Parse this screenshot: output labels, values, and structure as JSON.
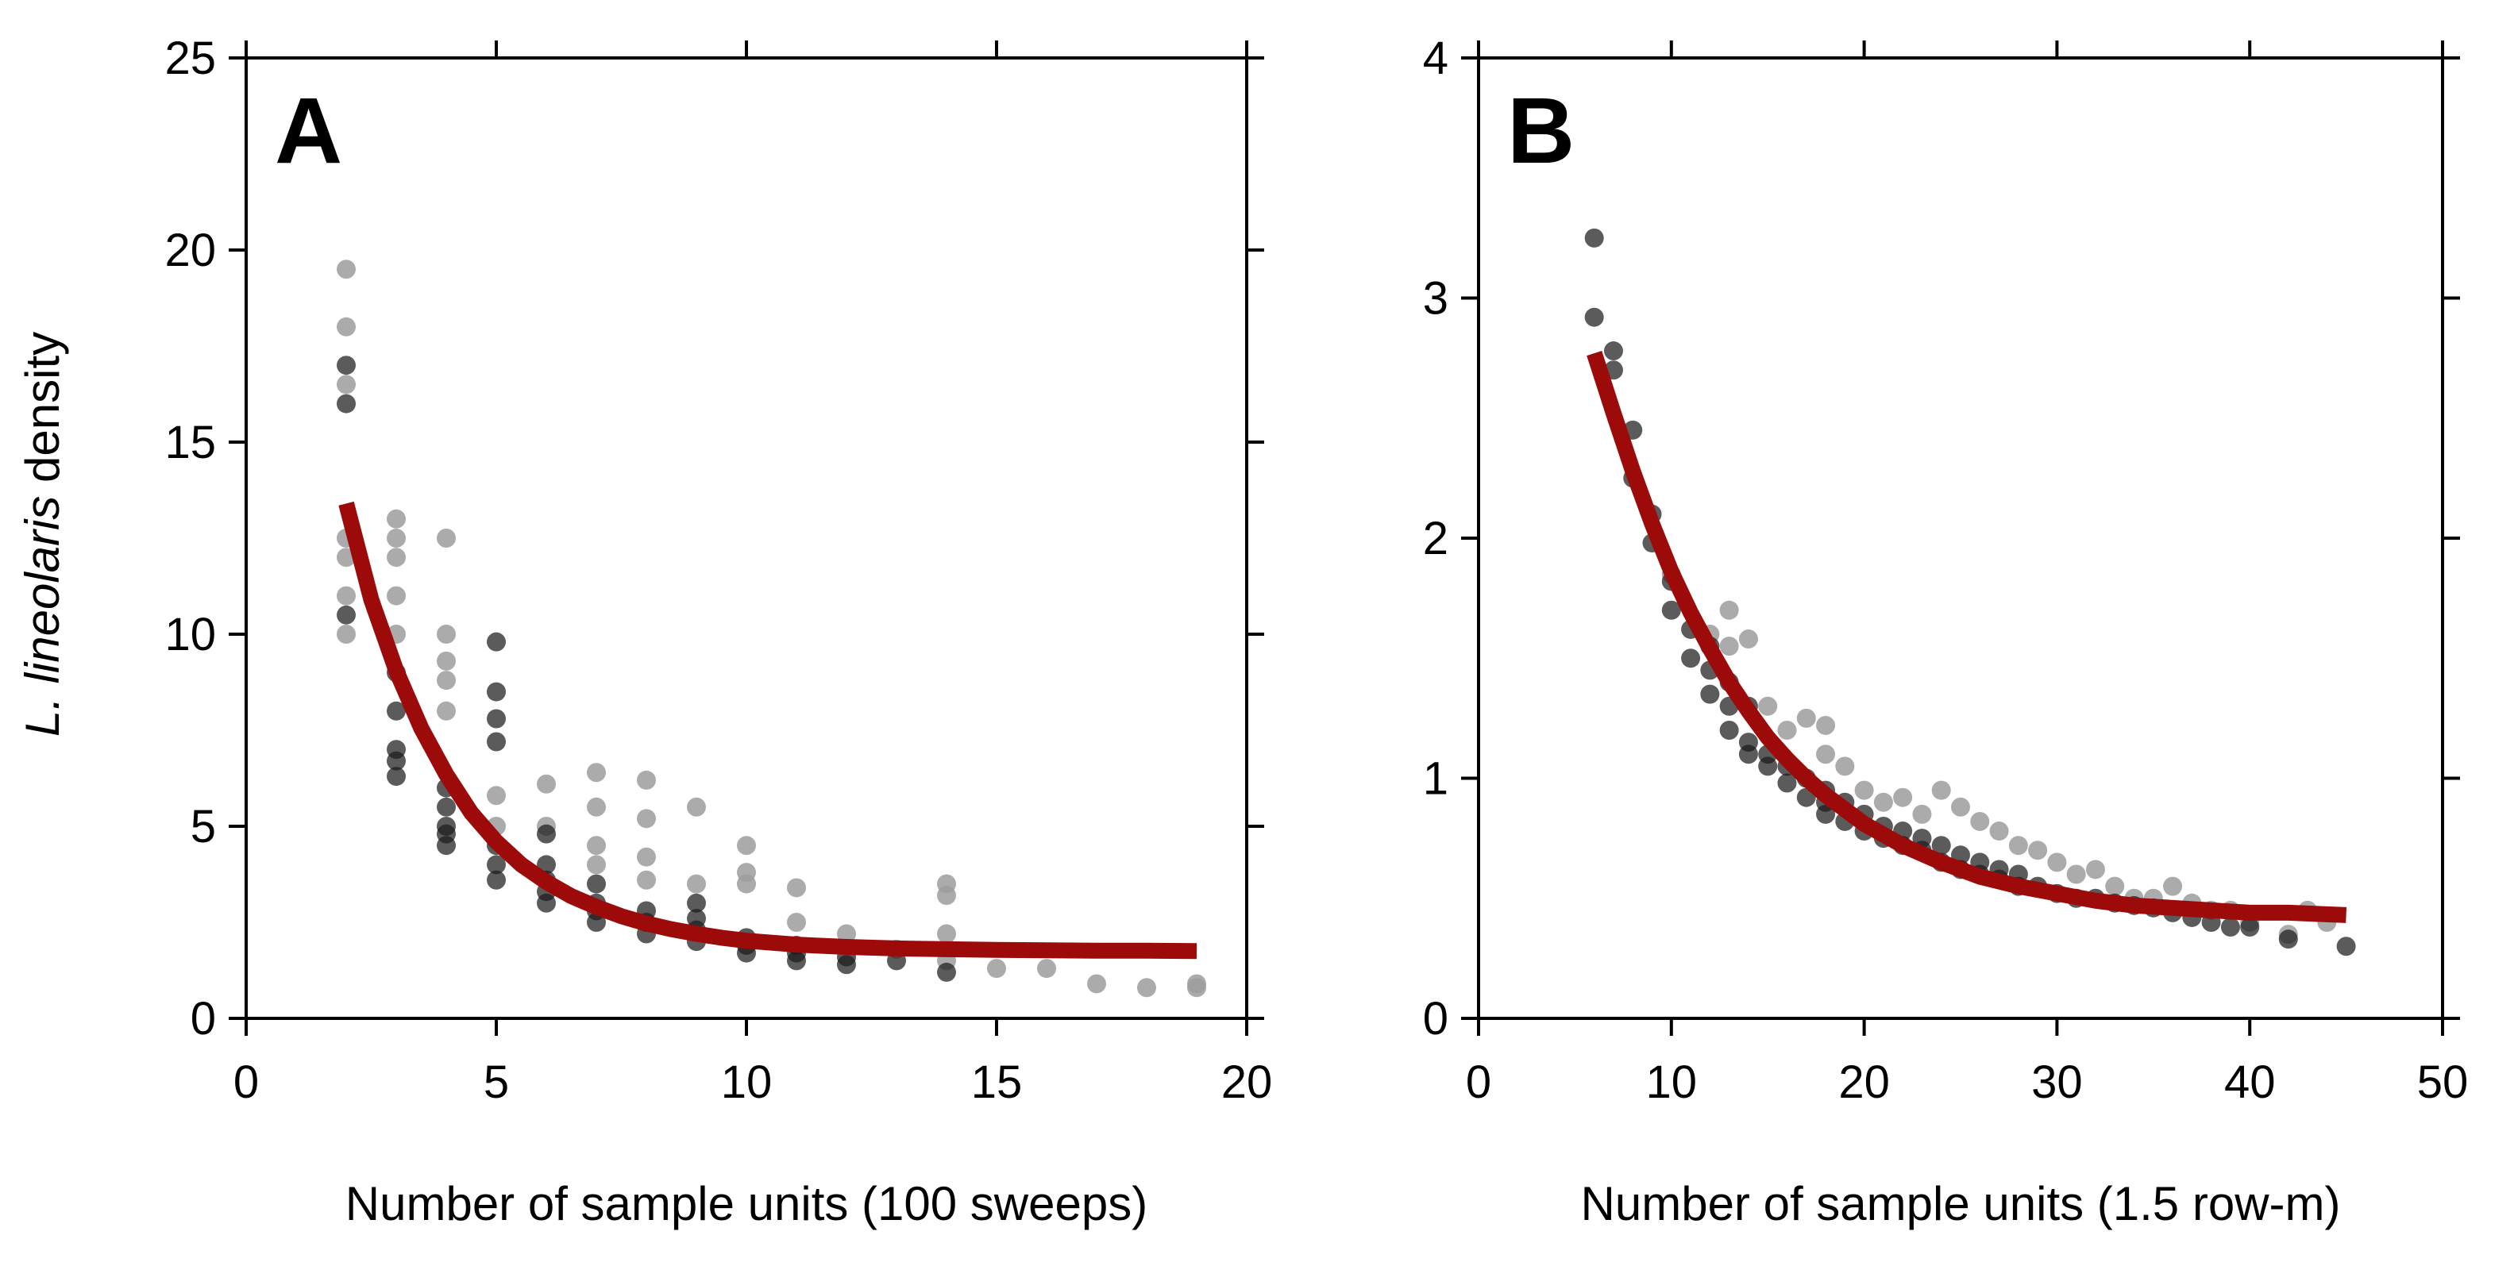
{
  "colors": {
    "fit": "#9c0a0a",
    "point_dark": "#1c1c1c",
    "point_light": "#9c9c9c"
  },
  "y_title": {
    "italic": "L. lineolaris",
    "rest": " density"
  },
  "chart_data": [
    {
      "type": "scatter",
      "panel": "A",
      "xlabel": "Number of sample units (100 sweeps)",
      "ylabel": "L. lineolaris density",
      "xlim": [
        0,
        20
      ],
      "ylim": [
        0,
        25
      ],
      "xticks": [
        0,
        5,
        10,
        15,
        20
      ],
      "yticks": [
        0,
        5,
        10,
        15,
        20,
        25
      ],
      "grid": false,
      "series": [
        {
          "name": "dark points",
          "points": [
            [
              2,
              17
            ],
            [
              2,
              16
            ],
            [
              2,
              10.5
            ],
            [
              3,
              9
            ],
            [
              3,
              8
            ],
            [
              3,
              7
            ],
            [
              3,
              6.7
            ],
            [
              3,
              6.3
            ],
            [
              4,
              6
            ],
            [
              4,
              5.5
            ],
            [
              4,
              5
            ],
            [
              4,
              4.8
            ],
            [
              4,
              4.5
            ],
            [
              5,
              9.8
            ],
            [
              5,
              8.5
            ],
            [
              5,
              7.8
            ],
            [
              5,
              7.2
            ],
            [
              5,
              4.5
            ],
            [
              5,
              4
            ],
            [
              5,
              3.6
            ],
            [
              6,
              4.8
            ],
            [
              6,
              4
            ],
            [
              6,
              3.6
            ],
            [
              6,
              3.3
            ],
            [
              6,
              3
            ],
            [
              7,
              3.5
            ],
            [
              7,
              3
            ],
            [
              7,
              2.8
            ],
            [
              7,
              2.5
            ],
            [
              8,
              2.8
            ],
            [
              8,
              2.5
            ],
            [
              8,
              2.2
            ],
            [
              9,
              3
            ],
            [
              9,
              2.6
            ],
            [
              9,
              2.3
            ],
            [
              9,
              2
            ],
            [
              10,
              2.1
            ],
            [
              10,
              1.9
            ],
            [
              10,
              1.7
            ],
            [
              11,
              1.9
            ],
            [
              11,
              1.7
            ],
            [
              11,
              1.5
            ],
            [
              12,
              1.6
            ],
            [
              12,
              1.4
            ],
            [
              13,
              1.5
            ],
            [
              14,
              1.2
            ]
          ]
        },
        {
          "name": "light points",
          "points": [
            [
              2,
              19.5
            ],
            [
              2,
              18
            ],
            [
              2,
              16.5
            ],
            [
              2,
              12.5
            ],
            [
              2,
              12
            ],
            [
              2,
              11
            ],
            [
              2,
              10
            ],
            [
              3,
              13
            ],
            [
              3,
              12.5
            ],
            [
              3,
              12
            ],
            [
              3,
              11
            ],
            [
              3,
              10
            ],
            [
              4,
              12.5
            ],
            [
              4,
              10
            ],
            [
              4,
              9.3
            ],
            [
              4,
              8.8
            ],
            [
              4,
              8
            ],
            [
              5,
              5.8
            ],
            [
              5,
              5
            ],
            [
              6,
              6.1
            ],
            [
              6,
              5
            ],
            [
              7,
              6.4
            ],
            [
              7,
              5.5
            ],
            [
              7,
              4.5
            ],
            [
              7,
              4
            ],
            [
              8,
              6.2
            ],
            [
              8,
              5.2
            ],
            [
              8,
              4.2
            ],
            [
              8,
              3.6
            ],
            [
              9,
              5.5
            ],
            [
              9,
              3.5
            ],
            [
              10,
              4.5
            ],
            [
              10,
              3.8
            ],
            [
              10,
              3.5
            ],
            [
              11,
              3.4
            ],
            [
              11,
              2.5
            ],
            [
              12,
              2.2
            ],
            [
              13,
              1.8
            ],
            [
              14,
              3.5
            ],
            [
              14,
              3.2
            ],
            [
              14,
              2.2
            ],
            [
              14,
              1.5
            ],
            [
              15,
              1.3
            ],
            [
              16,
              1.3
            ],
            [
              17,
              0.9
            ],
            [
              18,
              0.8
            ],
            [
              19,
              0.9
            ],
            [
              19,
              0.8
            ]
          ]
        },
        {
          "name": "fitted curve",
          "kind": "line",
          "x": [
            2,
            2.5,
            3,
            3.5,
            4,
            4.5,
            5,
            5.5,
            6,
            6.5,
            7,
            7.5,
            8,
            8.5,
            9,
            9.5,
            10,
            11,
            12,
            13,
            14,
            15,
            16,
            17,
            18,
            19
          ],
          "y": [
            13.4,
            10.9,
            9.05,
            7.55,
            6.35,
            5.35,
            4.6,
            4,
            3.55,
            3.18,
            2.9,
            2.66,
            2.47,
            2.32,
            2.2,
            2.1,
            2.02,
            1.92,
            1.86,
            1.82,
            1.8,
            1.78,
            1.77,
            1.76,
            1.76,
            1.75
          ]
        }
      ]
    },
    {
      "type": "scatter",
      "panel": "B",
      "xlabel": "Number of sample units (1.5 row-m)",
      "ylabel": "",
      "xlim": [
        0,
        50
      ],
      "ylim": [
        0,
        4
      ],
      "xticks": [
        0,
        10,
        20,
        30,
        40,
        50
      ],
      "yticks": [
        0,
        1,
        2,
        3,
        4
      ],
      "grid": false,
      "series": [
        {
          "name": "dark points",
          "points": [
            [
              6,
              3.25
            ],
            [
              6,
              2.92
            ],
            [
              7,
              2.78
            ],
            [
              7,
              2.7
            ],
            [
              8,
              2.45
            ],
            [
              8,
              2.25
            ],
            [
              9,
              2.1
            ],
            [
              9,
              1.98
            ],
            [
              10,
              1.82
            ],
            [
              10,
              1.7
            ],
            [
              11,
              1.62
            ],
            [
              11,
              1.5
            ],
            [
              12,
              1.55
            ],
            [
              12,
              1.45
            ],
            [
              12,
              1.35
            ],
            [
              13,
              1.4
            ],
            [
              13,
              1.3
            ],
            [
              13,
              1.2
            ],
            [
              14,
              1.3
            ],
            [
              14,
              1.15
            ],
            [
              14,
              1.1
            ],
            [
              15,
              1.1
            ],
            [
              15,
              1.05
            ],
            [
              16,
              1.05
            ],
            [
              16,
              0.98
            ],
            [
              17,
              1.0
            ],
            [
              17,
              0.92
            ],
            [
              18,
              0.95
            ],
            [
              18,
              0.9
            ],
            [
              18,
              0.85
            ],
            [
              19,
              0.9
            ],
            [
              19,
              0.82
            ],
            [
              20,
              0.85
            ],
            [
              20,
              0.78
            ],
            [
              21,
              0.8
            ],
            [
              21,
              0.75
            ],
            [
              22,
              0.78
            ],
            [
              22,
              0.72
            ],
            [
              23,
              0.75
            ],
            [
              23,
              0.7
            ],
            [
              24,
              0.72
            ],
            [
              24,
              0.65
            ],
            [
              25,
              0.68
            ],
            [
              25,
              0.62
            ],
            [
              26,
              0.65
            ],
            [
              26,
              0.6
            ],
            [
              27,
              0.62
            ],
            [
              27,
              0.58
            ],
            [
              28,
              0.6
            ],
            [
              28,
              0.55
            ],
            [
              29,
              0.55
            ],
            [
              30,
              0.52
            ],
            [
              31,
              0.5
            ],
            [
              32,
              0.5
            ],
            [
              33,
              0.48
            ],
            [
              34,
              0.47
            ],
            [
              35,
              0.46
            ],
            [
              36,
              0.44
            ],
            [
              37,
              0.42
            ],
            [
              38,
              0.4
            ],
            [
              39,
              0.38
            ],
            [
              40,
              0.38
            ],
            [
              42,
              0.33
            ],
            [
              45,
              0.3
            ]
          ]
        },
        {
          "name": "light points",
          "points": [
            [
              10,
              1.85
            ],
            [
              12,
              1.6
            ],
            [
              13,
              1.7
            ],
            [
              13,
              1.55
            ],
            [
              14,
              1.58
            ],
            [
              15,
              1.3
            ],
            [
              16,
              1.2
            ],
            [
              17,
              1.25
            ],
            [
              18,
              1.22
            ],
            [
              18,
              1.1
            ],
            [
              19,
              1.05
            ],
            [
              20,
              0.95
            ],
            [
              21,
              0.9
            ],
            [
              22,
              0.92
            ],
            [
              23,
              0.85
            ],
            [
              24,
              0.95
            ],
            [
              25,
              0.88
            ],
            [
              26,
              0.82
            ],
            [
              27,
              0.78
            ],
            [
              28,
              0.72
            ],
            [
              29,
              0.7
            ],
            [
              30,
              0.65
            ],
            [
              31,
              0.6
            ],
            [
              32,
              0.62
            ],
            [
              33,
              0.55
            ],
            [
              34,
              0.5
            ],
            [
              35,
              0.5
            ],
            [
              36,
              0.55
            ],
            [
              37,
              0.48
            ],
            [
              38,
              0.45
            ],
            [
              39,
              0.45
            ],
            [
              40,
              0.4
            ],
            [
              42,
              0.35
            ],
            [
              43,
              0.45
            ],
            [
              44,
              0.4
            ]
          ]
        },
        {
          "name": "fitted curve",
          "kind": "line",
          "x": [
            6,
            7,
            8,
            9,
            10,
            11,
            12,
            13,
            14,
            15,
            16,
            17,
            18,
            19,
            20,
            22,
            24,
            26,
            28,
            30,
            32,
            34,
            36,
            38,
            40,
            42,
            45
          ],
          "y": [
            2.77,
            2.52,
            2.28,
            2.06,
            1.86,
            1.69,
            1.54,
            1.4,
            1.28,
            1.17,
            1.08,
            1.0,
            0.93,
            0.87,
            0.81,
            0.72,
            0.65,
            0.59,
            0.55,
            0.52,
            0.49,
            0.47,
            0.46,
            0.45,
            0.44,
            0.44,
            0.43
          ]
        }
      ]
    }
  ]
}
